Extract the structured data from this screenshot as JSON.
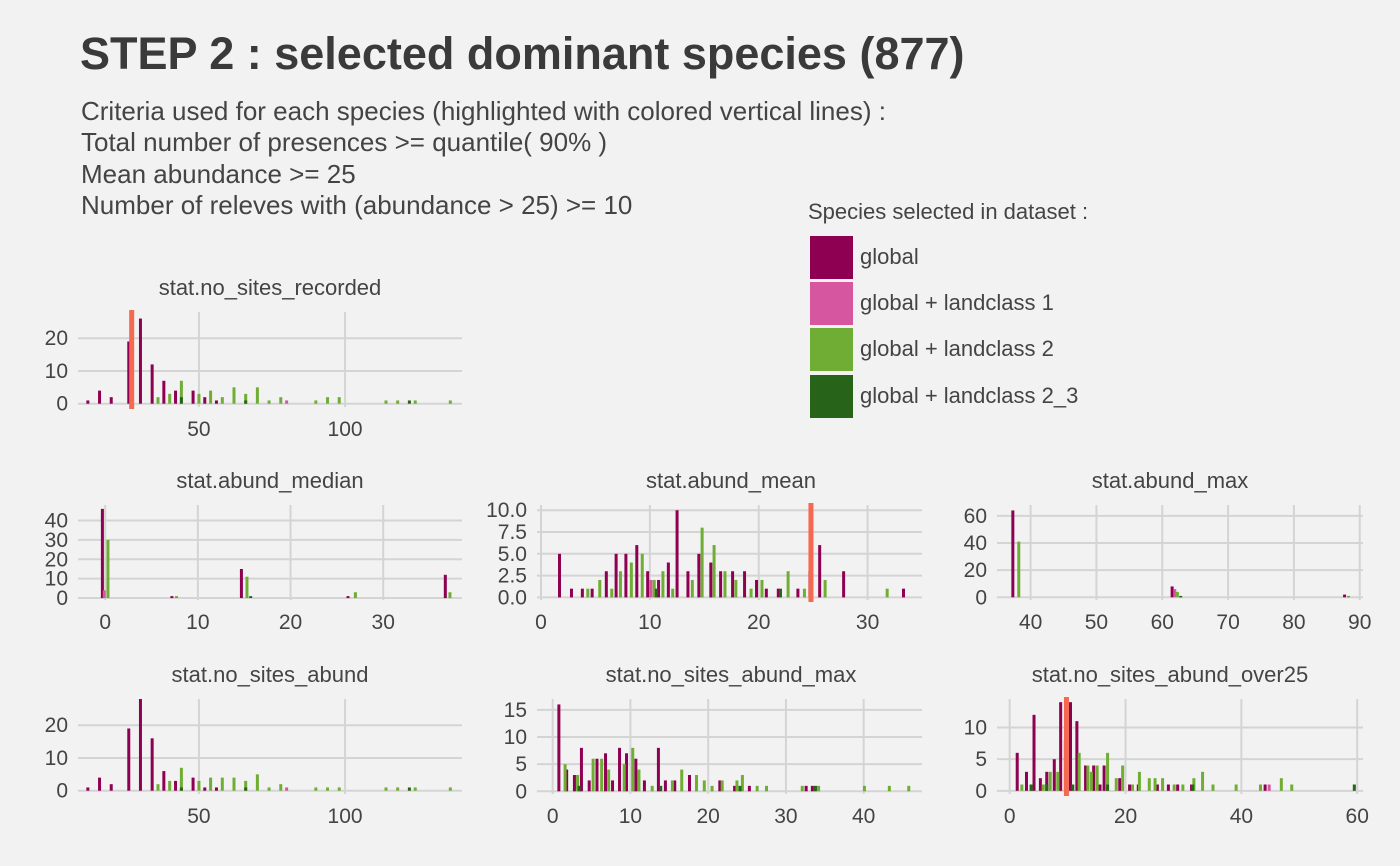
{
  "title": "STEP 2 : selected dominant species (877)",
  "subtitle_lines": [
    "Criteria used for each species (highlighted with colored vertical lines) :",
    "Total number of presences >= quantile( 90% )",
    "Mean abundance >= 25",
    "Number of releves with (abundance > 25) >= 10"
  ],
  "legend": {
    "title": "Species selected in dataset :",
    "items": [
      {
        "label": "global",
        "color": "#8e0152"
      },
      {
        "label": "global + landclass 1",
        "color": "#d6579f"
      },
      {
        "label": "global + landclass 2",
        "color": "#70ad35"
      },
      {
        "label": "global + landclass 2_3",
        "color": "#276419"
      }
    ]
  },
  "colors": {
    "background": "#f2f2f2",
    "grid": "#d4d4d4",
    "threshold": "#f4694f"
  },
  "chart_data": [
    {
      "type": "bar",
      "title": "stat.no_sites_recorded",
      "xlim": [
        10,
        140
      ],
      "ylim": [
        -1,
        28
      ],
      "xticks": [
        50,
        100
      ],
      "yticks": [
        0,
        10,
        20
      ],
      "ytick_labels": [
        "0",
        "10",
        "20"
      ],
      "threshold": 27,
      "bars": [
        [
          0,
          12,
          1
        ],
        [
          0,
          16,
          4
        ],
        [
          0,
          20,
          2
        ],
        [
          0,
          26,
          19
        ],
        [
          0,
          30,
          26
        ],
        [
          0,
          34,
          12
        ],
        [
          0,
          38,
          7
        ],
        [
          0,
          42,
          4
        ],
        [
          0,
          48,
          4
        ],
        [
          0,
          52,
          2
        ],
        [
          0,
          56,
          1
        ],
        [
          1,
          80,
          1
        ],
        [
          2,
          27,
          1
        ],
        [
          2,
          36,
          2
        ],
        [
          2,
          40,
          3
        ],
        [
          2,
          44,
          7
        ],
        [
          2,
          50,
          3
        ],
        [
          2,
          54,
          4
        ],
        [
          2,
          58,
          2
        ],
        [
          2,
          62,
          5
        ],
        [
          2,
          66,
          3
        ],
        [
          2,
          70,
          5
        ],
        [
          2,
          74,
          1
        ],
        [
          2,
          78,
          2
        ],
        [
          2,
          90,
          1
        ],
        [
          2,
          94,
          2
        ],
        [
          2,
          98,
          2
        ],
        [
          2,
          114,
          1
        ],
        [
          2,
          118,
          1
        ],
        [
          2,
          124,
          1
        ],
        [
          2,
          136,
          1
        ],
        [
          3,
          44,
          2
        ],
        [
          3,
          66,
          1
        ],
        [
          3,
          122,
          1
        ]
      ]
    },
    {
      "type": "bar",
      "title": "stat.abund_median",
      "xlim": [
        -2.5,
        38.5
      ],
      "ylim": [
        -1,
        48
      ],
      "xticks": [
        0,
        10,
        20,
        30
      ],
      "yticks": [
        0,
        10,
        20,
        30,
        40
      ],
      "ytick_labels": [
        "0",
        "10",
        "20",
        "30",
        "40"
      ],
      "threshold": null,
      "bars": [
        [
          0,
          -0.3,
          46
        ],
        [
          0,
          7.2,
          1
        ],
        [
          0,
          14.7,
          15
        ],
        [
          0,
          26.2,
          1
        ],
        [
          0,
          36.7,
          12
        ],
        [
          1,
          -0.1,
          4
        ],
        [
          2,
          0.3,
          30
        ],
        [
          2,
          7.7,
          1
        ],
        [
          2,
          15.3,
          11
        ],
        [
          2,
          27.0,
          3
        ],
        [
          2,
          37.2,
          3
        ],
        [
          3,
          15.7,
          1
        ]
      ]
    },
    {
      "type": "bar",
      "title": "stat.abund_mean",
      "xlim": [
        0,
        35
      ],
      "ylim": [
        -0.3,
        10.6
      ],
      "xticks": [
        0,
        10,
        20,
        30
      ],
      "yticks": [
        0,
        2.5,
        5,
        7.5,
        10
      ],
      "ytick_labels": [
        "0.0",
        "2.5",
        "5.0",
        "7.5",
        "10.0"
      ],
      "threshold": 24.8,
      "bars": [
        [
          0,
          1.7,
          5
        ],
        [
          0,
          2.8,
          1
        ],
        [
          0,
          3.8,
          1
        ],
        [
          0,
          4.7,
          1
        ],
        [
          0,
          6.0,
          3
        ],
        [
          0,
          6.9,
          5
        ],
        [
          0,
          7.8,
          5
        ],
        [
          0,
          8.8,
          6
        ],
        [
          0,
          9.8,
          3
        ],
        [
          0,
          10.8,
          2
        ],
        [
          0,
          11.7,
          4
        ],
        [
          0,
          12.5,
          10
        ],
        [
          0,
          13.5,
          3
        ],
        [
          0,
          14.5,
          5
        ],
        [
          0,
          15.6,
          4
        ],
        [
          0,
          16.5,
          3
        ],
        [
          0,
          17.6,
          3
        ],
        [
          0,
          18.7,
          3
        ],
        [
          0,
          19.8,
          2
        ],
        [
          0,
          20.7,
          1
        ],
        [
          0,
          21.8,
          1
        ],
        [
          0,
          23.6,
          1
        ],
        [
          0,
          24.7,
          3
        ],
        [
          0,
          25.6,
          6
        ],
        [
          0,
          27.8,
          3
        ],
        [
          0,
          33.3,
          1
        ],
        [
          1,
          10.1,
          2
        ],
        [
          2,
          4.3,
          1
        ],
        [
          2,
          5.4,
          2
        ],
        [
          2,
          6.5,
          1
        ],
        [
          2,
          7.3,
          3
        ],
        [
          2,
          8.3,
          4
        ],
        [
          2,
          9.3,
          5
        ],
        [
          2,
          10.4,
          2
        ],
        [
          2,
          11.2,
          3
        ],
        [
          2,
          12.1,
          1
        ],
        [
          2,
          13.9,
          2
        ],
        [
          2,
          14.8,
          8
        ],
        [
          2,
          15.9,
          6
        ],
        [
          2,
          16.9,
          3
        ],
        [
          2,
          17.9,
          2
        ],
        [
          2,
          19.3,
          1
        ],
        [
          2,
          20.3,
          2
        ],
        [
          2,
          22.7,
          3
        ],
        [
          2,
          24.2,
          1
        ],
        [
          2,
          26.1,
          2
        ],
        [
          2,
          31.8,
          1
        ],
        [
          3,
          10.6,
          1
        ],
        [
          3,
          22.0,
          1
        ]
      ]
    },
    {
      "type": "bar",
      "title": "stat.abund_max",
      "xlim": [
        35.5,
        90.5
      ],
      "ylim": [
        -2,
        68
      ],
      "xticks": [
        40,
        50,
        60,
        70,
        80,
        90
      ],
      "yticks": [
        0,
        20,
        40,
        60
      ],
      "ytick_labels": [
        "0",
        "20",
        "40",
        "60"
      ],
      "threshold": null,
      "bars": [
        [
          0,
          37.3,
          64
        ],
        [
          0,
          61.5,
          8
        ],
        [
          0,
          87.7,
          2
        ],
        [
          1,
          61.9,
          6
        ],
        [
          2,
          38.2,
          41
        ],
        [
          2,
          62.3,
          4
        ],
        [
          2,
          88.3,
          1
        ],
        [
          3,
          62.8,
          1
        ]
      ]
    },
    {
      "type": "bar",
      "title": "stat.no_sites_abund",
      "xlim": [
        10,
        140
      ],
      "ylim": [
        -1,
        28
      ],
      "xticks": [
        50,
        100
      ],
      "yticks": [
        0,
        10,
        20
      ],
      "ytick_labels": [
        "0",
        "10",
        "20"
      ],
      "threshold": null,
      "bars": [
        [
          0,
          12,
          1
        ],
        [
          0,
          16,
          4
        ],
        [
          0,
          20,
          2
        ],
        [
          0,
          26,
          19
        ],
        [
          0,
          30,
          28
        ],
        [
          0,
          34,
          16
        ],
        [
          0,
          38,
          6
        ],
        [
          0,
          42,
          3
        ],
        [
          0,
          48,
          4
        ],
        [
          0,
          52,
          1
        ],
        [
          0,
          56,
          1
        ],
        [
          1,
          80,
          1
        ],
        [
          2,
          36,
          2
        ],
        [
          2,
          40,
          3
        ],
        [
          2,
          44,
          7
        ],
        [
          2,
          50,
          3
        ],
        [
          2,
          54,
          4
        ],
        [
          2,
          58,
          4
        ],
        [
          2,
          62,
          4
        ],
        [
          2,
          66,
          3
        ],
        [
          2,
          70,
          5
        ],
        [
          2,
          74,
          1
        ],
        [
          2,
          78,
          2
        ],
        [
          2,
          90,
          1
        ],
        [
          2,
          94,
          1
        ],
        [
          2,
          98,
          1
        ],
        [
          2,
          114,
          1
        ],
        [
          2,
          118,
          1
        ],
        [
          2,
          124,
          1
        ],
        [
          2,
          136,
          1
        ],
        [
          3,
          44,
          1
        ],
        [
          3,
          66,
          1
        ],
        [
          3,
          122,
          1
        ]
      ]
    },
    {
      "type": "bar",
      "title": "stat.no_sites_abund_max",
      "xlim": [
        -1.5,
        47.5
      ],
      "ylim": [
        -0.5,
        17
      ],
      "xticks": [
        0,
        10,
        20,
        30,
        40
      ],
      "yticks": [
        0,
        5,
        10,
        15
      ],
      "ytick_labels": [
        "0",
        "5",
        "10",
        "15"
      ],
      "threshold": null,
      "bars": [
        [
          0,
          0.8,
          16
        ],
        [
          0,
          1.8,
          4
        ],
        [
          0,
          2.8,
          3
        ],
        [
          0,
          3.7,
          8
        ],
        [
          0,
          4.7,
          2
        ],
        [
          0,
          5.7,
          6
        ],
        [
          0,
          6.8,
          7
        ],
        [
          0,
          7.7,
          2
        ],
        [
          0,
          8.6,
          8
        ],
        [
          0,
          9.5,
          7
        ],
        [
          0,
          10.7,
          6
        ],
        [
          0,
          11.8,
          2
        ],
        [
          0,
          13.6,
          8
        ],
        [
          0,
          14.5,
          2
        ],
        [
          0,
          15.7,
          2
        ],
        [
          0,
          17.6,
          3
        ],
        [
          0,
          21.5,
          2
        ],
        [
          0,
          23.4,
          1
        ],
        [
          0,
          25.3,
          1
        ],
        [
          0,
          32.6,
          1
        ],
        [
          0,
          33.4,
          1
        ],
        [
          2,
          1.6,
          5
        ],
        [
          2,
          3.2,
          3
        ],
        [
          2,
          5.2,
          6
        ],
        [
          2,
          6.3,
          6
        ],
        [
          2,
          7.2,
          4
        ],
        [
          2,
          9.2,
          5
        ],
        [
          2,
          10.3,
          8
        ],
        [
          2,
          11.1,
          4
        ],
        [
          2,
          12.8,
          1
        ],
        [
          2,
          15.4,
          2
        ],
        [
          2,
          16.6,
          4
        ],
        [
          2,
          18.5,
          3
        ],
        [
          2,
          19.5,
          2
        ],
        [
          2,
          20.5,
          1
        ],
        [
          2,
          21.8,
          2
        ],
        [
          2,
          23.7,
          2
        ],
        [
          2,
          24.4,
          3
        ],
        [
          2,
          26.3,
          1
        ],
        [
          2,
          27.5,
          1
        ],
        [
          2,
          32.1,
          1
        ],
        [
          2,
          34.2,
          1
        ],
        [
          2,
          40.1,
          1
        ],
        [
          2,
          43.3,
          1
        ],
        [
          2,
          45.8,
          1
        ],
        [
          3,
          3.4,
          1
        ],
        [
          3,
          13.9,
          1
        ],
        [
          3,
          24.1,
          1
        ],
        [
          3,
          33.8,
          1
        ]
      ]
    },
    {
      "type": "bar",
      "title": "stat.no_sites_abund_over25",
      "xlim": [
        -1.5,
        61
      ],
      "ylim": [
        -0.5,
        14.5
      ],
      "xticks": [
        0,
        20,
        40,
        60
      ],
      "yticks": [
        0,
        5,
        10
      ],
      "ytick_labels": [
        "0",
        "5",
        "10"
      ],
      "threshold": 9.8,
      "bars": [
        [
          0,
          1.3,
          6
        ],
        [
          0,
          2.9,
          3
        ],
        [
          0,
          4.2,
          12
        ],
        [
          0,
          5.3,
          2
        ],
        [
          0,
          6.4,
          3
        ],
        [
          0,
          7.7,
          5
        ],
        [
          0,
          8.8,
          14
        ],
        [
          0,
          10.5,
          14
        ],
        [
          0,
          11.6,
          11
        ],
        [
          0,
          13.1,
          4
        ],
        [
          0,
          14.5,
          4
        ],
        [
          0,
          15.6,
          1
        ],
        [
          0,
          16.3,
          4
        ],
        [
          0,
          19.0,
          2
        ],
        [
          0,
          20.7,
          1
        ],
        [
          0,
          22.2,
          1
        ],
        [
          0,
          25.5,
          1
        ],
        [
          0,
          27.4,
          1
        ],
        [
          0,
          29.0,
          1
        ],
        [
          0,
          31.4,
          1
        ],
        [
          0,
          44.1,
          1
        ],
        [
          1,
          44.8,
          1
        ],
        [
          2,
          2.1,
          1
        ],
        [
          2,
          3.7,
          1
        ],
        [
          2,
          5.8,
          1
        ],
        [
          2,
          7.0,
          3
        ],
        [
          2,
          8.3,
          3
        ],
        [
          2,
          9.6,
          8
        ],
        [
          2,
          12.0,
          6
        ],
        [
          2,
          13.5,
          4
        ],
        [
          2,
          14.1,
          3
        ],
        [
          2,
          15.1,
          4
        ],
        [
          2,
          16.9,
          6
        ],
        [
          2,
          18.4,
          2
        ],
        [
          2,
          19.5,
          4
        ],
        [
          2,
          21.2,
          1
        ],
        [
          2,
          22.4,
          3
        ],
        [
          2,
          24.1,
          2
        ],
        [
          2,
          25.1,
          2
        ],
        [
          2,
          26.4,
          2
        ],
        [
          2,
          28.4,
          1
        ],
        [
          2,
          29.9,
          1
        ],
        [
          2,
          31.8,
          2
        ],
        [
          2,
          33.3,
          3
        ],
        [
          2,
          35.1,
          1
        ],
        [
          2,
          39.1,
          1
        ],
        [
          2,
          43.3,
          1
        ],
        [
          2,
          46.9,
          2
        ],
        [
          2,
          48.7,
          1
        ],
        [
          3,
          3.7,
          1
        ],
        [
          3,
          6.4,
          1
        ],
        [
          3,
          10.9,
          1
        ],
        [
          3,
          16.9,
          1
        ],
        [
          3,
          31.6,
          1
        ],
        [
          3,
          59.5,
          1
        ]
      ]
    }
  ]
}
